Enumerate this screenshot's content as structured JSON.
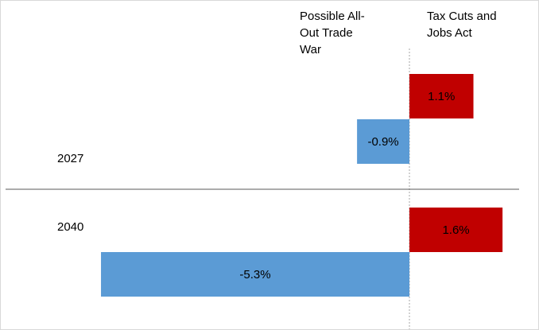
{
  "chart_data": {
    "type": "bar",
    "orientation": "horizontal",
    "categories": [
      "2027",
      "2040"
    ],
    "series": [
      {
        "name": "Possible All-Out Trade War",
        "values": [
          -0.9,
          -5.3
        ],
        "labels": [
          "-0.9%",
          "-5.3%"
        ],
        "color": "#5b9bd5"
      },
      {
        "name": "Tax Cuts and Jobs Act",
        "values": [
          1.1,
          1.6
        ],
        "labels": [
          "1.1%",
          "1.6%"
        ],
        "color": "#c00000"
      }
    ],
    "headers": [
      [
        "Possible All-",
        "Out Trade",
        "War"
      ],
      [
        "Tax Cuts and",
        "Jobs Act"
      ]
    ],
    "xlim": [
      -5.3,
      1.6
    ],
    "grid": false,
    "zero_line": "dotted"
  }
}
